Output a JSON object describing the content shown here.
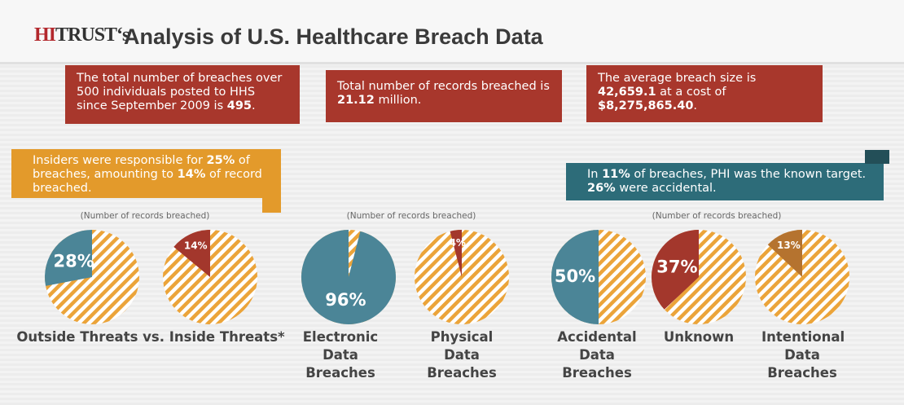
{
  "header": {
    "logo_red": "HI",
    "logo_dark": "TRUST",
    "logo_suffix": "‘s",
    "title": "Analysis of U.S. Healthcare Breach Data"
  },
  "facts": [
    [
      "The total number of breaches over 500 individuals posted to HHS since September 2009 is ",
      "495",
      "."
    ],
    [
      "Total number of records breached is ",
      "21.12",
      " million."
    ],
    [
      "The average breach size is ",
      "42,659.1",
      " at a cost of ",
      "$8,275,865.40",
      "."
    ]
  ],
  "banners": [
    [
      "Insiders were responsible for ",
      "25%",
      " of breaches, amounting to ",
      "14%",
      " of records breached."
    ],
    [
      "In ",
      "11%",
      " of breaches, PHI was the known target. ",
      "26%",
      " were accidental."
    ]
  ],
  "notes": [
    "(Number of records breached)",
    "(Number of records breached)",
    "(Number of records breached)"
  ],
  "captions": [
    "Outside Threats vs. Inside Threats*",
    "Electronic Data Breaches",
    "Physical Data Breaches",
    "Accidental Data Breaches",
    "Unknown",
    "Intentional Data Breaches"
  ],
  "chart_data": [
    {
      "type": "pie",
      "values": [
        28
      ],
      "value_labels": [
        "28%"
      ],
      "color": "#4b8597"
    },
    {
      "type": "pie",
      "values": [
        14
      ],
      "value_labels": [
        "14%"
      ],
      "color": "#a3372c"
    },
    {
      "type": "pie",
      "values": [
        96
      ],
      "value_labels": [
        "96%"
      ],
      "color": "#4b8597"
    },
    {
      "type": "pie",
      "values": [
        4
      ],
      "value_labels": [
        "4%"
      ],
      "color": "#a3372c"
    },
    {
      "type": "pie",
      "values": [
        50
      ],
      "value_labels": [
        "50%"
      ],
      "color": "#4b8597"
    },
    {
      "type": "pie",
      "values": [
        37
      ],
      "value_labels": [
        "37%"
      ],
      "color": "#a3372c"
    },
    {
      "type": "pie",
      "values": [
        13
      ],
      "value_labels": [
        "13%"
      ],
      "color": "#b5732f"
    }
  ]
}
